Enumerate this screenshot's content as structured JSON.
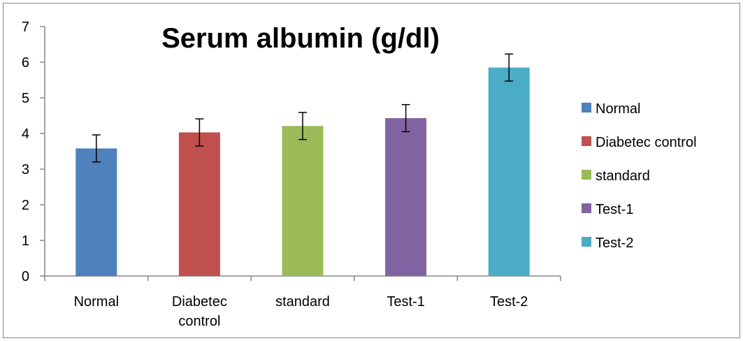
{
  "chart_data": {
    "type": "bar",
    "title": "Serum albumin (g/dl)",
    "xlabel": "",
    "ylabel": "",
    "categories": [
      "Normal",
      "Diabetec control",
      "standard",
      "Test-1",
      "Test-2"
    ],
    "category_lines": [
      [
        "Normal"
      ],
      [
        "Diabetec",
        "control"
      ],
      [
        "standard"
      ],
      [
        "Test-1"
      ],
      [
        "Test-2"
      ]
    ],
    "values": [
      3.58,
      4.03,
      4.21,
      4.43,
      5.85
    ],
    "error": [
      0.38,
      0.38,
      0.38,
      0.38,
      0.38
    ],
    "colors": [
      "#4F81BD",
      "#C0504D",
      "#9BBB59",
      "#8064A2",
      "#4BACC6"
    ],
    "ylim": [
      0,
      7
    ],
    "yticks": [
      "0",
      "1",
      "2",
      "3",
      "4",
      "5",
      "6",
      "7"
    ],
    "grid": false,
    "legend": {
      "position": "right",
      "entries": [
        "Normal",
        "Diabetec control",
        "standard",
        "Test-1",
        "Test-2"
      ]
    }
  }
}
